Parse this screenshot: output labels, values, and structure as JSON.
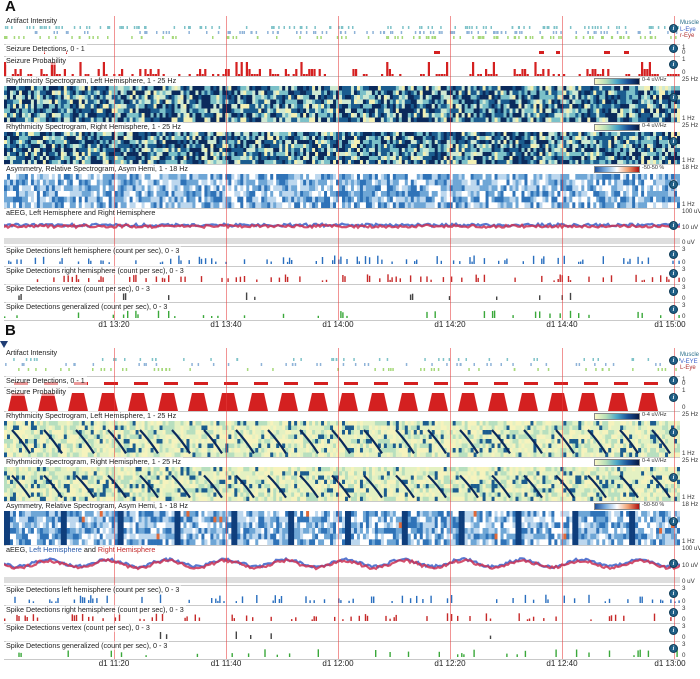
{
  "panels": [
    {
      "letter": "A",
      "tracks": {
        "artifact": {
          "label": "Artifact Intensity",
          "legend": [
            "Muscle",
            "L-Eye",
            "r-Eye"
          ]
        },
        "seizure_det": {
          "label": "Seizure Detections, 0 - 1",
          "scale": [
            "1",
            "0"
          ]
        },
        "seizure_prob": {
          "label": "Seizure Probability",
          "scale": [
            "1",
            "0"
          ]
        },
        "rhythm_left": {
          "label": "Rhythmicity Spectrogram, Left Hemisphere, 1 - 25 Hz",
          "colorbar": "0-4 uV/Hz",
          "scale": [
            "25 Hz",
            "1 Hz"
          ]
        },
        "rhythm_right": {
          "label": "Rhythmicity Spectrogram, Right Hemisphere, 1 - 25 Hz",
          "colorbar": "0-4 uV/Hz",
          "scale": [
            "25 Hz",
            "1 Hz"
          ]
        },
        "asym": {
          "label": "Asymmetry, Relative Spectrogram, Asym Hemi, 1 - 18 Hz",
          "colorbar": "-50-50 %",
          "scale": [
            "18 Hz",
            "1 Hz"
          ]
        },
        "aeeg": {
          "label_prefix": "aEEG, ",
          "label_left": "Left Hemisphere",
          "label_mid": " and ",
          "label_right": "Right Hemisphere",
          "scale": [
            "100 uV",
            "10 uV",
            "0 uV"
          ]
        },
        "spike_left": {
          "label": "Spike Detections left hemisphere (count per sec), 0 - 3",
          "scale": [
            "3",
            "0"
          ]
        },
        "spike_right": {
          "label": "Spike Detections right hemisphere (count per sec), 0 - 3",
          "scale": [
            "3",
            "0"
          ]
        },
        "spike_vertex": {
          "label": "Spike Detections vertex (count per sec), 0 - 3",
          "scale": [
            "3",
            "0"
          ]
        },
        "spike_gen": {
          "label": "Spike Detections generalized (count per sec), 0 - 3",
          "scale": [
            "3",
            "0"
          ]
        }
      },
      "time_ticks": [
        "d1 13:20",
        "d1 13:40",
        "d1 14:00",
        "d1 14:20",
        "d1 14:40",
        "d1 15:00"
      ]
    },
    {
      "letter": "B",
      "tracks": {
        "artifact": {
          "label": "Artifact Intensity",
          "legend": [
            "Muscle",
            "V-EYE",
            "L-Eye"
          ]
        },
        "seizure_det": {
          "label": "Seizure Detections, 0 - 1",
          "scale": [
            "1",
            "0"
          ]
        },
        "seizure_prob": {
          "label": "Seizure Probability",
          "scale": [
            "1",
            "0"
          ]
        },
        "rhythm_left": {
          "label": "Rhythmicity Spectrogram, Left Hemisphere, 1 - 25 Hz",
          "colorbar": "0-4 uV/Hz",
          "scale": [
            "25 Hz",
            "1 Hz"
          ]
        },
        "rhythm_right": {
          "label": "Rhythmicity Spectrogram, Right Hemisphere, 1 - 25 Hz",
          "colorbar": "0-4 uV/Hz",
          "scale": [
            "25 Hz",
            "1 Hz"
          ]
        },
        "asym": {
          "label": "Asymmetry, Relative Spectrogram, Asym Hemi, 1 - 18 Hz",
          "colorbar": "-50-50 %",
          "scale": [
            "18 Hz",
            "1 Hz"
          ]
        },
        "aeeg": {
          "label_prefix": "aEEG, ",
          "label_left": "Left Hemisphere",
          "label_mid": " and ",
          "label_right": "Right Hemisphere",
          "scale": [
            "100 uV",
            "10 uV",
            "0 uV"
          ]
        },
        "spike_left": {
          "label": "Spike Detections left hemisphere (count per sec), 0 - 3",
          "scale": [
            "3",
            "0"
          ]
        },
        "spike_right": {
          "label": "Spike Detections right hemisphere (count per sec), 0 - 3",
          "scale": [
            "3",
            "0"
          ]
        },
        "spike_vertex": {
          "label": "Spike Detections vertex (count per sec), 0 - 3",
          "scale": [
            "3",
            "0"
          ]
        },
        "spike_gen": {
          "label": "Spike Detections generalized (count per sec), 0 - 3",
          "scale": [
            "3",
            "0"
          ]
        }
      },
      "time_ticks": [
        "d1 11:20",
        "d1 11:40",
        "d1 12:00",
        "d1 12:20",
        "d1 12:40",
        "d1 13:00"
      ]
    }
  ],
  "info_icon": "info-icon",
  "colors": {
    "spectrogram_dark": "#0b2a5c",
    "spectrogram_light": "#f3f0b4",
    "asym_blue": "#2f73b8",
    "seizure_red": "#d42020",
    "spike_left": "#2a6fbf",
    "spike_right": "#c62a2a",
    "spike_vertex": "#444444",
    "spike_gen": "#3aa83a",
    "aeeg_left": "#3a5fc8",
    "aeeg_right": "#cc3355"
  }
}
